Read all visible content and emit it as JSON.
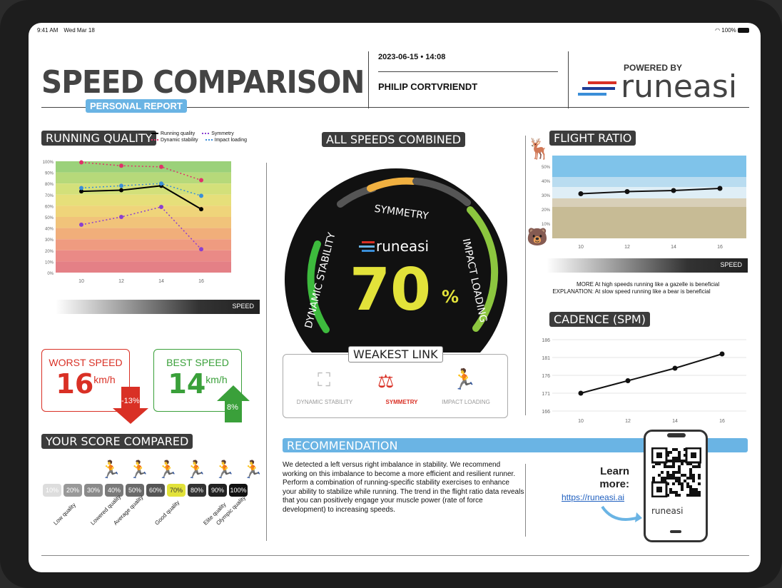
{
  "status": {
    "time": "9:41 AM",
    "date": "Wed Mar 18",
    "battery": "100%"
  },
  "header": {
    "title": "SPEED COMPARISON",
    "subtitle": "PERSONAL REPORT",
    "datetime": "2023-06-15 • 14:08",
    "name": "PHILIP CORTVRIENDT",
    "powered_by": "POWERED BY",
    "brand": "runeasi"
  },
  "running_quality": {
    "tag": "RUNNING QUALITY",
    "legend": [
      "Running quality",
      "Symmetry",
      "Dynamic stability",
      "Impact loading"
    ],
    "speed_label": "SPEED",
    "chart_data": {
      "type": "line",
      "x": [
        10,
        12,
        14,
        16
      ],
      "y_ticks": [
        "100%",
        "90%",
        "80%",
        "70%",
        "60%",
        "50%",
        "40%",
        "30%",
        "20%",
        "10%",
        "0%"
      ],
      "ylim": [
        0,
        100
      ],
      "series": [
        {
          "name": "Running quality",
          "color": "#000000",
          "values": [
            73,
            74,
            78,
            57
          ]
        },
        {
          "name": "Dynamic stability",
          "color": "#e0306a",
          "values": [
            99,
            96,
            95,
            83
          ]
        },
        {
          "name": "Symmetry",
          "color": "#8a3fd1",
          "values": [
            43,
            50,
            59,
            21
          ]
        },
        {
          "name": "Impact loading",
          "color": "#3a8ed8",
          "values": [
            76,
            78,
            80,
            69
          ]
        }
      ]
    }
  },
  "gauge": {
    "tag": "ALL SPEEDS COMBINED",
    "brand": "runeasi",
    "value": "70",
    "unit": "%",
    "labels": {
      "left": "DYNAMIC STABILITY",
      "top": "SYMMETRY",
      "right": "IMPACT LOADING"
    },
    "colors": {
      "left": "#3dba3d",
      "top": "#f0b040",
      "right": "#8cc63f",
      "value": "#e2e23a"
    }
  },
  "weakest": {
    "tag": "WEAKEST LINK",
    "items": [
      {
        "label": "DYNAMIC STABILITY",
        "active": false
      },
      {
        "label": "SYMMETRY",
        "active": true
      },
      {
        "label": "IMPACT LOADING",
        "active": false
      }
    ]
  },
  "worst": {
    "label": "WORST SPEED",
    "value": "16",
    "unit": "km/h",
    "delta": "-13%",
    "color": "#d93025"
  },
  "best": {
    "label": "BEST SPEED",
    "value": "14",
    "unit": "km/h",
    "delta": "8%",
    "color": "#3aa03a"
  },
  "score": {
    "tag": "YOUR SCORE COMPARED",
    "cells": [
      "10%",
      "20%",
      "30%",
      "40%",
      "50%",
      "60%",
      "70%",
      "80%",
      "90%",
      "100%"
    ],
    "labels": [
      "Low quality",
      "Lowered quality",
      "Average quality",
      "Good quality",
      "Elite quality",
      "Olympic quality"
    ]
  },
  "flight": {
    "tag": "FLIGHT RATIO",
    "speed_label": "SPEED",
    "more": "MORE",
    "explanation": "EXPLANATION:",
    "line1": "At high speeds running like a gazelle is beneficial",
    "line2": "At slow speed running like a bear is beneficial",
    "chart_data": {
      "type": "line",
      "x": [
        10,
        12,
        14,
        16
      ],
      "y_ticks": [
        "50%",
        "40%",
        "30%",
        "20%",
        "10%"
      ],
      "values": [
        33,
        35,
        36,
        38
      ]
    }
  },
  "cadence": {
    "tag": "CADENCE (SPM)",
    "chart_data": {
      "type": "line",
      "x": [
        10,
        12,
        14,
        16
      ],
      "y_ticks": [
        186,
        181,
        176,
        171,
        166
      ],
      "ylim": [
        166,
        186
      ],
      "values": [
        171,
        174.5,
        178,
        182
      ]
    }
  },
  "recommendation": {
    "tag": "RECOMMENDATION",
    "text": "We detected a left versus right imbalance in stability. We recommend working on this imbalance to become a more efficient and resilient runner. Perform a combination of running-specific stability exercises to enhance your ability to stabilize while running. The trend in the flight ratio data reveals that you can positively engage your muscle power (rate of force development) to increasing speeds.",
    "learn": "Learn more:",
    "link": "https://runeasi.ai",
    "phone_brand": "runeasi"
  }
}
